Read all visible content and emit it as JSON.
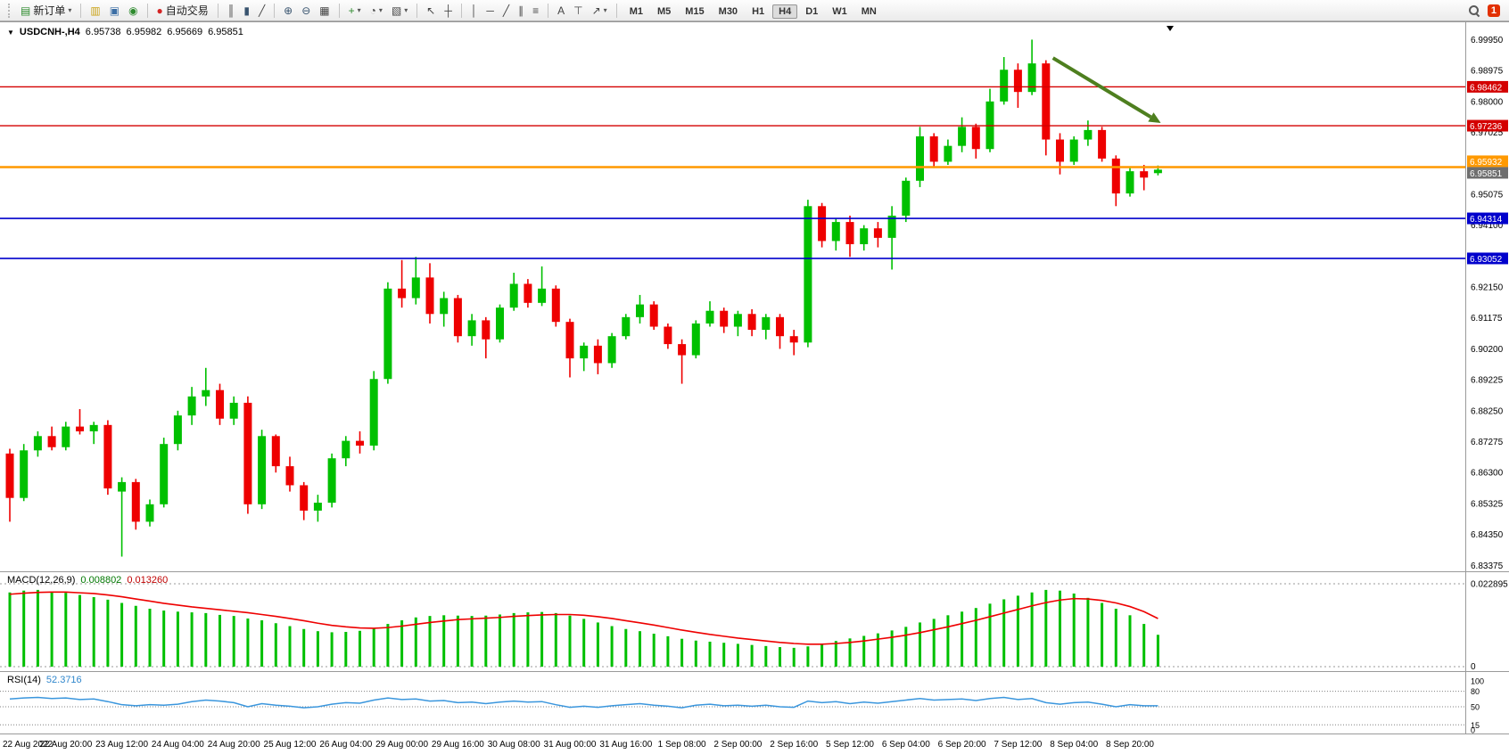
{
  "toolbar": {
    "new_order_label": "新订单",
    "autotrade_label": "自动交易",
    "timeframes": [
      "M1",
      "M5",
      "M15",
      "M30",
      "H1",
      "H4",
      "D1",
      "W1",
      "MN"
    ],
    "active_timeframe": "H4",
    "notification_count": "1",
    "icons": {
      "new_order": "▤",
      "dropdown": "▾",
      "market_watch": "▥",
      "data_window": "▣",
      "navigator": "◉",
      "autotrade_dot": "●",
      "bar_chart": "║",
      "candlestick_chart": "▮",
      "line_chart": "╱",
      "zoom_in": "⊕",
      "zoom_out": "⊖",
      "tile_windows": "▦",
      "indicators": "+",
      "period": "◔",
      "template": "▧",
      "cursor": "↖",
      "crosshair": "┼",
      "vline": "│",
      "hline": "─",
      "trendline": "╱",
      "channel": "∥",
      "fibonacci": "≡",
      "text": "A",
      "text_label": "⊤",
      "arrows": "↗"
    }
  },
  "chart": {
    "dropdown_marker": "▼",
    "symbol": "USDCNH-,H4",
    "open": "6.95738",
    "high": "6.95982",
    "low": "6.95669",
    "close": "6.95851"
  },
  "indicators": {
    "macd_label": "MACD(12,26,9)",
    "macd_value_main": "0.008802",
    "macd_value_signal": "0.013260",
    "rsi_label": "RSI(14)",
    "rsi_value": "52.3716"
  },
  "chart_data": {
    "type": "candlestick",
    "symbol": "USDCNH-",
    "timeframe": "H4",
    "grid": false,
    "colors": {
      "up": "#00c000",
      "down": "#ee0000",
      "macd_hist": "#00c000",
      "macd_signal": "#ee0000",
      "rsi": "#3a96dd",
      "line_red": "#d40000",
      "line_orange": "#ff9900",
      "line_blue": "#0000cc",
      "arrow": "#4e7f1f",
      "bid_badge": "#6e6e6e"
    },
    "price_axis": {
      "max": 6.9995,
      "min": 6.83375,
      "step": 0.00975,
      "labels": [
        "6.99950",
        "6.98975",
        "6.98000",
        "6.97025",
        "6.96050",
        "6.95075",
        "6.94100",
        "6.93125",
        "6.92150",
        "6.91175",
        "6.90200",
        "6.89225",
        "6.88250",
        "6.87275",
        "6.86300",
        "6.85325",
        "6.84350",
        "6.83375"
      ]
    },
    "candles": [
      [
        6.869,
        6.8705,
        6.8475,
        6.855
      ],
      [
        6.855,
        6.872,
        6.854,
        6.87
      ],
      [
        6.87,
        6.876,
        6.868,
        6.8745
      ],
      [
        6.8745,
        6.8775,
        6.87,
        6.871
      ],
      [
        6.871,
        6.879,
        6.87,
        6.8775
      ],
      [
        6.8775,
        6.883,
        6.875,
        6.876
      ],
      [
        6.876,
        6.879,
        6.872,
        6.878
      ],
      [
        6.878,
        6.8795,
        6.856,
        6.858
      ],
      [
        6.857,
        6.8615,
        6.8365,
        6.86
      ],
      [
        6.86,
        6.861,
        6.845,
        6.8475
      ],
      [
        6.8475,
        6.8545,
        6.846,
        6.853
      ],
      [
        6.853,
        6.874,
        6.852,
        6.872
      ],
      [
        6.872,
        6.8825,
        6.87,
        6.881
      ],
      [
        6.881,
        6.89,
        6.878,
        6.887
      ],
      [
        6.887,
        6.896,
        6.884,
        6.889
      ],
      [
        6.889,
        6.891,
        6.878,
        6.88
      ],
      [
        6.88,
        6.887,
        6.878,
        6.885
      ],
      [
        6.885,
        6.887,
        6.85,
        6.853
      ],
      [
        6.853,
        6.8765,
        6.8515,
        6.8745
      ],
      [
        6.8745,
        6.875,
        6.863,
        6.865
      ],
      [
        6.865,
        6.868,
        6.857,
        6.859
      ],
      [
        6.859,
        6.86,
        6.848,
        6.851
      ],
      [
        6.851,
        6.856,
        6.8475,
        6.8535
      ],
      [
        6.8535,
        6.869,
        6.852,
        6.8675
      ],
      [
        6.8675,
        6.8745,
        6.865,
        6.873
      ],
      [
        6.873,
        6.876,
        6.869,
        6.8715
      ],
      [
        6.8715,
        6.895,
        6.87,
        6.8925
      ],
      [
        6.8925,
        6.923,
        6.891,
        6.921
      ],
      [
        6.921,
        6.93,
        6.915,
        6.918
      ],
      [
        6.918,
        6.931,
        6.916,
        6.9245
      ],
      [
        6.9245,
        6.929,
        6.91,
        6.913
      ],
      [
        6.913,
        6.92,
        6.909,
        6.918
      ],
      [
        6.918,
        6.919,
        6.904,
        6.906
      ],
      [
        6.906,
        6.913,
        6.903,
        6.911
      ],
      [
        6.911,
        6.912,
        6.899,
        6.905
      ],
      [
        6.905,
        6.916,
        6.904,
        6.915
      ],
      [
        6.915,
        6.926,
        6.914,
        6.9225
      ],
      [
        6.9225,
        6.924,
        6.915,
        6.9165
      ],
      [
        6.9165,
        6.928,
        6.9155,
        6.921
      ],
      [
        6.921,
        6.922,
        6.909,
        6.9105
      ],
      [
        6.9105,
        6.9115,
        6.893,
        6.899
      ],
      [
        6.899,
        6.904,
        6.895,
        6.903
      ],
      [
        6.903,
        6.905,
        6.894,
        6.8975
      ],
      [
        6.8975,
        6.907,
        6.896,
        6.906
      ],
      [
        6.906,
        6.913,
        6.905,
        6.912
      ],
      [
        6.912,
        6.919,
        6.91,
        6.916
      ],
      [
        6.916,
        6.917,
        6.908,
        6.909
      ],
      [
        6.909,
        6.91,
        6.902,
        6.9035
      ],
      [
        6.9035,
        6.905,
        6.891,
        6.9
      ],
      [
        6.9,
        6.911,
        6.899,
        6.91
      ],
      [
        6.91,
        6.917,
        6.909,
        6.914
      ],
      [
        6.914,
        6.915,
        6.907,
        6.909
      ],
      [
        6.909,
        6.914,
        6.906,
        6.913
      ],
      [
        6.913,
        6.9145,
        6.906,
        6.908
      ],
      [
        6.908,
        6.913,
        6.905,
        6.912
      ],
      [
        6.912,
        6.913,
        6.902,
        6.906
      ],
      [
        6.906,
        6.908,
        6.9,
        6.904
      ],
      [
        6.904,
        6.949,
        6.9025,
        6.947
      ],
      [
        6.947,
        6.948,
        6.934,
        6.936
      ],
      [
        6.936,
        6.943,
        6.933,
        6.942
      ],
      [
        6.942,
        6.944,
        6.931,
        6.935
      ],
      [
        6.935,
        6.941,
        6.933,
        6.94
      ],
      [
        6.94,
        6.942,
        6.934,
        6.937
      ],
      [
        6.937,
        6.947,
        6.927,
        6.944
      ],
      [
        6.944,
        6.956,
        6.942,
        6.955
      ],
      [
        6.955,
        6.972,
        6.953,
        6.969
      ],
      [
        6.969,
        6.97,
        6.959,
        6.961
      ],
      [
        6.961,
        6.968,
        6.96,
        6.966
      ],
      [
        6.966,
        6.975,
        6.964,
        6.972
      ],
      [
        6.972,
        6.973,
        6.962,
        6.965
      ],
      [
        6.965,
        6.984,
        6.964,
        6.98
      ],
      [
        6.98,
        6.994,
        6.979,
        6.99
      ],
      [
        6.99,
        6.992,
        6.978,
        6.983
      ],
      [
        6.983,
        6.9995,
        6.982,
        6.992
      ],
      [
        6.992,
        6.993,
        6.963,
        6.968
      ],
      [
        6.968,
        6.97,
        6.957,
        6.961
      ],
      [
        6.961,
        6.969,
        6.96,
        6.968
      ],
      [
        6.968,
        6.974,
        6.966,
        6.971
      ],
      [
        6.971,
        6.972,
        6.961,
        6.962
      ],
      [
        6.962,
        6.963,
        6.947,
        6.951
      ],
      [
        6.951,
        6.959,
        6.95,
        6.958
      ],
      [
        6.958,
        6.96,
        6.952,
        6.956
      ],
      [
        6.9574,
        6.9598,
        6.9567,
        6.9585
      ]
    ],
    "hlines": [
      {
        "price": 6.98462,
        "label": "6.98462",
        "color": "#d40000",
        "width": 1.4
      },
      {
        "price": 6.97236,
        "label": "6.97236",
        "color": "#d40000",
        "width": 1.4
      },
      {
        "price": 6.95932,
        "label": "6.95932",
        "color": "#ff9900",
        "width": 2.5,
        "bid_stack": true
      },
      {
        "price": 6.94314,
        "label": "6.94314",
        "color": "#0000cc",
        "width": 1.6
      },
      {
        "price": 6.93052,
        "label": "6.93052",
        "color": "#0000cc",
        "width": 1.6
      }
    ],
    "bid": {
      "price": 6.95851,
      "label": "6.95851"
    },
    "arrow": {
      "from_index": 74.5,
      "from_price": 6.9937,
      "to_index": 82.2,
      "to_price": 6.9732
    },
    "time_label_step": 4,
    "time_labels": [
      "22 Aug 2022",
      "22 Aug 20:00",
      "23 Aug 12:00",
      "24 Aug 04:00",
      "24 Aug 20:00",
      "25 Aug 12:00",
      "26 Aug 04:00",
      "29 Aug 00:00",
      "29 Aug 16:00",
      "30 Aug 08:00",
      "31 Aug 00:00",
      "31 Aug 16:00",
      "1 Sep 08:00",
      "2 Sep 00:00",
      "2 Sep 16:00",
      "5 Sep 12:00",
      "6 Sep 04:00",
      "6 Sep 20:00",
      "7 Sep 12:00",
      "8 Sep 04:00",
      "8 Sep 20:00"
    ],
    "macd": {
      "scale_max": 0.022895,
      "axis_labels": [
        "0.022895",
        "0"
      ],
      "histogram": [
        0.0205,
        0.021,
        0.0212,
        0.0208,
        0.0204,
        0.0198,
        0.0192,
        0.0185,
        0.0176,
        0.0168,
        0.016,
        0.0155,
        0.0152,
        0.015,
        0.0148,
        0.0143,
        0.014,
        0.0133,
        0.0128,
        0.012,
        0.0112,
        0.0104,
        0.0098,
        0.0095,
        0.0096,
        0.0099,
        0.0106,
        0.0118,
        0.0128,
        0.0136,
        0.014,
        0.0142,
        0.0141,
        0.014,
        0.0141,
        0.0144,
        0.0148,
        0.015,
        0.0151,
        0.0148,
        0.0141,
        0.0132,
        0.0122,
        0.0112,
        0.0104,
        0.0098,
        0.0091,
        0.0084,
        0.0077,
        0.0072,
        0.0069,
        0.0066,
        0.0063,
        0.006,
        0.0057,
        0.0054,
        0.0052,
        0.0056,
        0.0063,
        0.0071,
        0.0078,
        0.0085,
        0.0092,
        0.01,
        0.011,
        0.0122,
        0.0132,
        0.0142,
        0.0152,
        0.0162,
        0.0174,
        0.0186,
        0.0196,
        0.0205,
        0.0212,
        0.021,
        0.0202,
        0.019,
        0.0176,
        0.016,
        0.0142,
        0.0118,
        0.0088
      ],
      "signal": [
        0.02,
        0.0203,
        0.0205,
        0.0206,
        0.0206,
        0.0204,
        0.0202,
        0.0198,
        0.0193,
        0.0187,
        0.0181,
        0.0175,
        0.017,
        0.0165,
        0.0161,
        0.0157,
        0.0153,
        0.0149,
        0.0144,
        0.0139,
        0.0133,
        0.0127,
        0.012,
        0.0114,
        0.011,
        0.0107,
        0.0106,
        0.0108,
        0.0112,
        0.0117,
        0.0122,
        0.0126,
        0.013,
        0.0132,
        0.0134,
        0.0136,
        0.0139,
        0.0141,
        0.0143,
        0.0144,
        0.0144,
        0.0142,
        0.0138,
        0.0133,
        0.0127,
        0.0121,
        0.0115,
        0.0108,
        0.0101,
        0.0095,
        0.0089,
        0.0084,
        0.0079,
        0.0075,
        0.0071,
        0.0067,
        0.0064,
        0.0062,
        0.0062,
        0.0064,
        0.0067,
        0.0071,
        0.0076,
        0.0081,
        0.0087,
        0.0094,
        0.0102,
        0.011,
        0.0119,
        0.0128,
        0.0138,
        0.0148,
        0.0158,
        0.0168,
        0.0177,
        0.0184,
        0.0188,
        0.0187,
        0.0183,
        0.0176,
        0.0166,
        0.0152,
        0.0133
      ]
    },
    "rsi": {
      "range": [
        0,
        100
      ],
      "levels": [
        80,
        50,
        15
      ],
      "axis_labels": [
        "100",
        "80",
        "50",
        "15",
        "0"
      ],
      "values": [
        65,
        67,
        68,
        66,
        67,
        64,
        65,
        60,
        54,
        52,
        54,
        53,
        55,
        60,
        63,
        61,
        58,
        50,
        56,
        53,
        51,
        48,
        50,
        55,
        58,
        57,
        63,
        67,
        64,
        65,
        61,
        62,
        58,
        59,
        56,
        59,
        61,
        59,
        60,
        54,
        49,
        51,
        49,
        52,
        54,
        56,
        53,
        51,
        48,
        53,
        55,
        52,
        53,
        51,
        53,
        50,
        49,
        61,
        58,
        60,
        56,
        59,
        57,
        60,
        63,
        66,
        63,
        64,
        65,
        62,
        66,
        68,
        64,
        66,
        58,
        55,
        58,
        59,
        55,
        50,
        54,
        52,
        52
      ]
    }
  }
}
